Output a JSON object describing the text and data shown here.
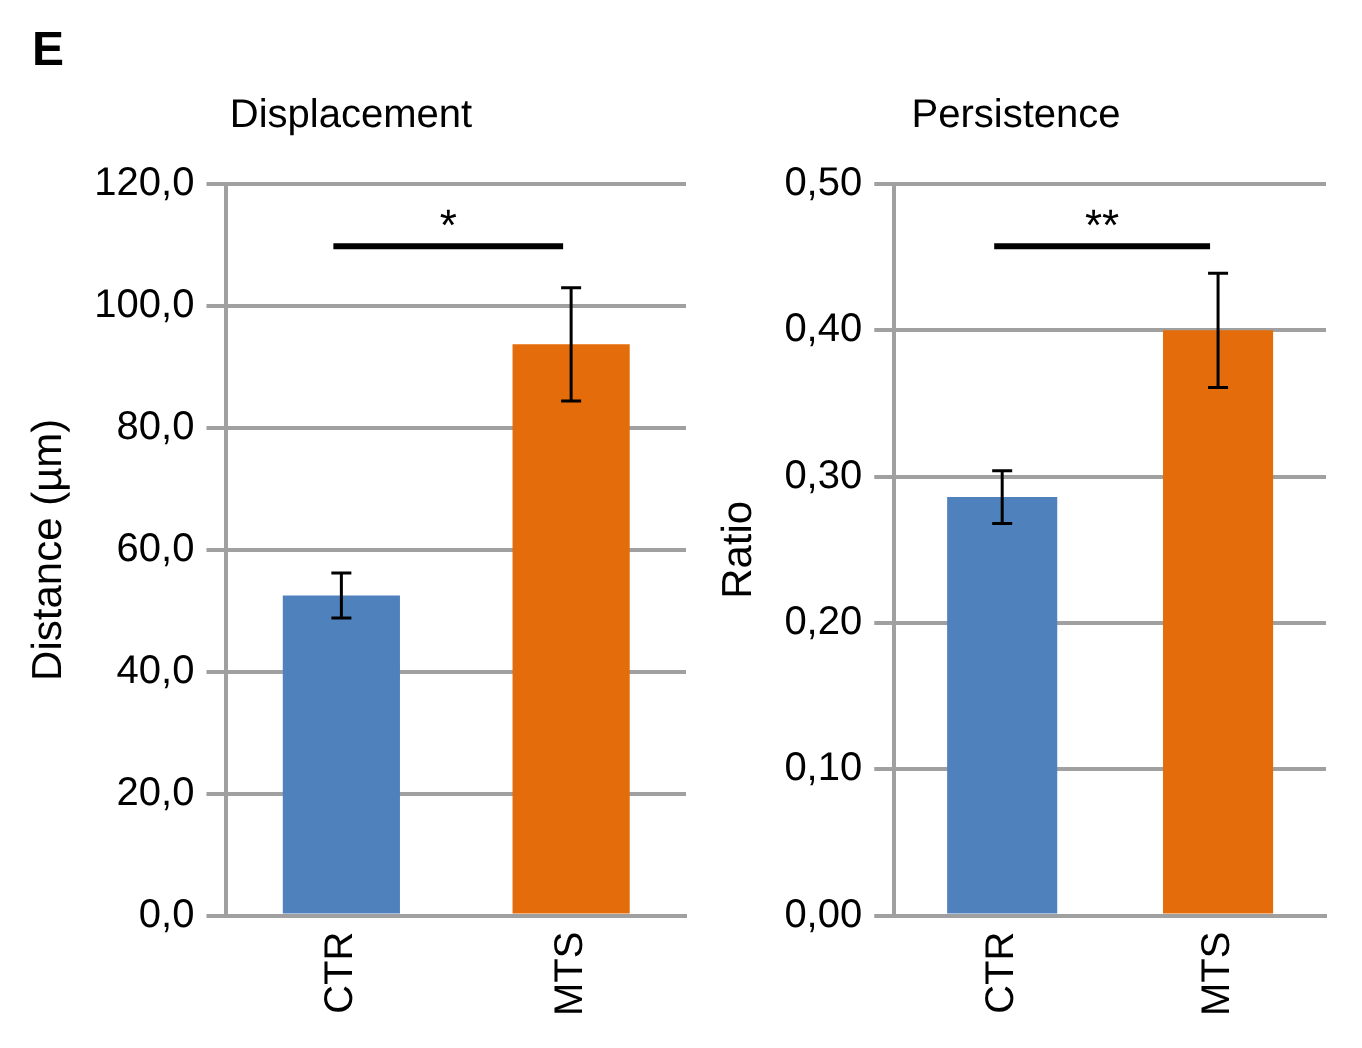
{
  "chart_data": [
    {
      "type": "bar",
      "title": "Displacement",
      "ylabel": "Distance (µm)",
      "categories": [
        "CTR",
        "MTS"
      ],
      "values": [
        52.5,
        93.7
      ],
      "colors": [
        "#4f81bd",
        "#e46c0a"
      ],
      "errors": [
        3.7,
        9.3
      ],
      "ylim": [
        0,
        120
      ],
      "yticks": [
        {
          "value": 0,
          "label": "0,0"
        },
        {
          "value": 20,
          "label": "20,0"
        },
        {
          "value": 40,
          "label": "40,0"
        },
        {
          "value": 60,
          "label": "60,0"
        },
        {
          "value": 80,
          "label": "80,0"
        },
        {
          "value": 100,
          "label": "100,0"
        },
        {
          "value": 120,
          "label": "120,0"
        }
      ],
      "grid": "y",
      "legend": false,
      "annotations": [
        "E",
        "*"
      ]
    },
    {
      "type": "bar",
      "title": "Persistence",
      "ylabel": "Ratio",
      "categories": [
        "CTR",
        "MTS"
      ],
      "values": [
        0.286,
        0.4
      ],
      "colors": [
        "#4f81bd",
        "#e46c0a"
      ],
      "errors": [
        0.018,
        0.039
      ],
      "ylim": [
        0,
        0.5
      ],
      "yticks": [
        {
          "value": 0,
          "label": "0,00"
        },
        {
          "value": 0.1,
          "label": "0,10"
        },
        {
          "value": 0.2,
          "label": "0,20"
        },
        {
          "value": 0.3,
          "label": "0,30"
        },
        {
          "value": 0.4,
          "label": "0,40"
        },
        {
          "value": 0.5,
          "label": "0,50"
        }
      ],
      "grid": "y",
      "legend": false,
      "annotations": [
        "**"
      ]
    }
  ]
}
